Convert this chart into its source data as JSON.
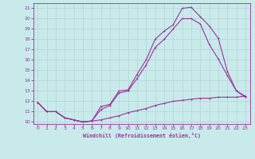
{
  "xlabel": "Windchill (Refroidissement éolien,°C)",
  "bg_color": "#c8eaea",
  "grid_color": "#b8d8d8",
  "line_color": "#993399",
  "xlim": [
    -0.5,
    23.5
  ],
  "ylim": [
    9.8,
    21.5
  ],
  "xticks": [
    0,
    1,
    2,
    3,
    4,
    5,
    6,
    7,
    8,
    9,
    10,
    11,
    12,
    13,
    14,
    15,
    16,
    17,
    18,
    19,
    20,
    21,
    22,
    23
  ],
  "yticks": [
    10,
    11,
    12,
    13,
    14,
    15,
    16,
    17,
    18,
    19,
    20,
    21
  ],
  "line1_x": [
    0,
    1,
    2,
    3,
    4,
    5,
    6,
    7,
    8,
    9,
    10,
    11,
    12,
    13,
    14,
    15,
    16,
    17,
    18,
    19,
    20,
    21,
    22,
    23
  ],
  "line1_y": [
    11.9,
    11.0,
    11.0,
    10.4,
    10.2,
    10.0,
    10.1,
    11.5,
    11.7,
    13.0,
    13.1,
    14.6,
    16.0,
    18.0,
    18.8,
    19.4,
    21.0,
    21.1,
    20.2,
    19.3,
    18.1,
    14.9,
    13.0,
    12.5
  ],
  "line2_x": [
    0,
    1,
    2,
    3,
    4,
    5,
    6,
    7,
    8,
    9,
    10,
    11,
    12,
    13,
    14,
    15,
    16,
    17,
    18,
    19,
    20,
    21,
    22,
    23
  ],
  "line2_y": [
    11.9,
    11.0,
    11.0,
    10.4,
    10.2,
    10.0,
    10.1,
    11.2,
    11.6,
    12.8,
    13.0,
    14.2,
    15.5,
    17.2,
    18.0,
    19.0,
    20.0,
    20.0,
    19.5,
    17.5,
    16.1,
    14.5,
    13.0,
    12.4
  ],
  "line3_x": [
    0,
    1,
    2,
    3,
    4,
    5,
    6,
    7,
    8,
    9,
    10,
    11,
    12,
    13,
    14,
    15,
    16,
    17,
    18,
    19,
    20,
    21,
    22,
    23
  ],
  "line3_y": [
    11.9,
    11.0,
    11.0,
    10.4,
    10.2,
    10.0,
    10.1,
    10.2,
    10.4,
    10.6,
    10.9,
    11.1,
    11.3,
    11.6,
    11.8,
    12.0,
    12.1,
    12.2,
    12.3,
    12.3,
    12.4,
    12.4,
    12.4,
    12.5
  ]
}
